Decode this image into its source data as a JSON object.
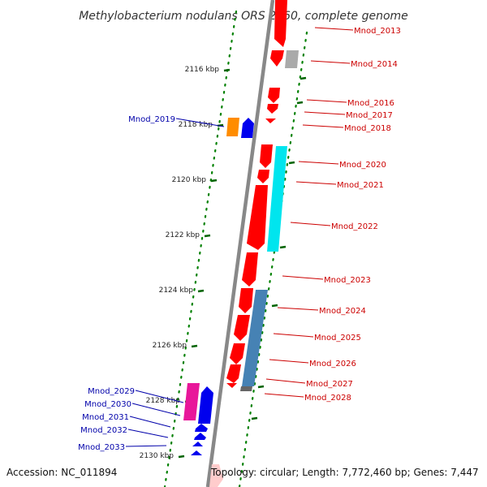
{
  "title": "Methylobacterium nodulans ORS 2060, complete genome",
  "footer": {
    "accession": "Accession: NC_011894",
    "topology": "Topology: circular; Length: 7,772,460 bp; Genes: 7,447"
  },
  "ticks": [
    {
      "label": "2116 kbp",
      "kbp": 2116
    },
    {
      "label": "2118 kbp",
      "kbp": 2118
    },
    {
      "label": "2120 kbp",
      "kbp": 2120
    },
    {
      "label": "2122 kbp",
      "kbp": 2122
    },
    {
      "label": "2124 kbp",
      "kbp": 2124
    },
    {
      "label": "2126 kbp",
      "kbp": 2126
    },
    {
      "label": "2128 kbp",
      "kbp": 2128
    },
    {
      "label": "2130 kbp",
      "kbp": 2130
    }
  ],
  "genes_right": [
    {
      "label": "Mnod_2013",
      "color": "#ff0000"
    },
    {
      "label": "Mnod_2014",
      "color": "#aaaaaa"
    },
    {
      "label": "Mnod_2016",
      "color": "#ff0000"
    },
    {
      "label": "Mnod_2017",
      "color": "#ff0000"
    },
    {
      "label": "Mnod_2018",
      "color": "#ff0000"
    },
    {
      "label": "Mnod_2020",
      "color": "#ff0000"
    },
    {
      "label": "Mnod_2021",
      "color": "#ff0000"
    },
    {
      "label": "Mnod_2022",
      "color": "#00e5ee"
    },
    {
      "label": "Mnod_2023",
      "color": "#ff0000"
    },
    {
      "label": "Mnod_2024",
      "color": "#4682b4"
    },
    {
      "label": "Mnod_2025",
      "color": "#ff0000"
    },
    {
      "label": "Mnod_2026",
      "color": "#ff0000"
    },
    {
      "label": "Mnod_2027",
      "color": "#ff0000"
    },
    {
      "label": "Mnod_2028",
      "color": "#666666"
    }
  ],
  "genes_left": [
    {
      "label": "Mnod_2019",
      "color": "#ff8c00"
    },
    {
      "label": "Mnod_2029",
      "color": "#e8179a"
    },
    {
      "label": "Mnod_2030",
      "color": "#0000ee"
    },
    {
      "label": "Mnod_2031",
      "color": "#0000ee"
    },
    {
      "label": "Mnod_2032",
      "color": "#0000ee"
    },
    {
      "label": "Mnod_2033",
      "color": "#0000ee"
    }
  ],
  "colors": {
    "forward_label": "#cc0000",
    "reverse_label": "#0000aa",
    "backbone": "#888888",
    "tick": "#006400",
    "dots": "#008000"
  }
}
